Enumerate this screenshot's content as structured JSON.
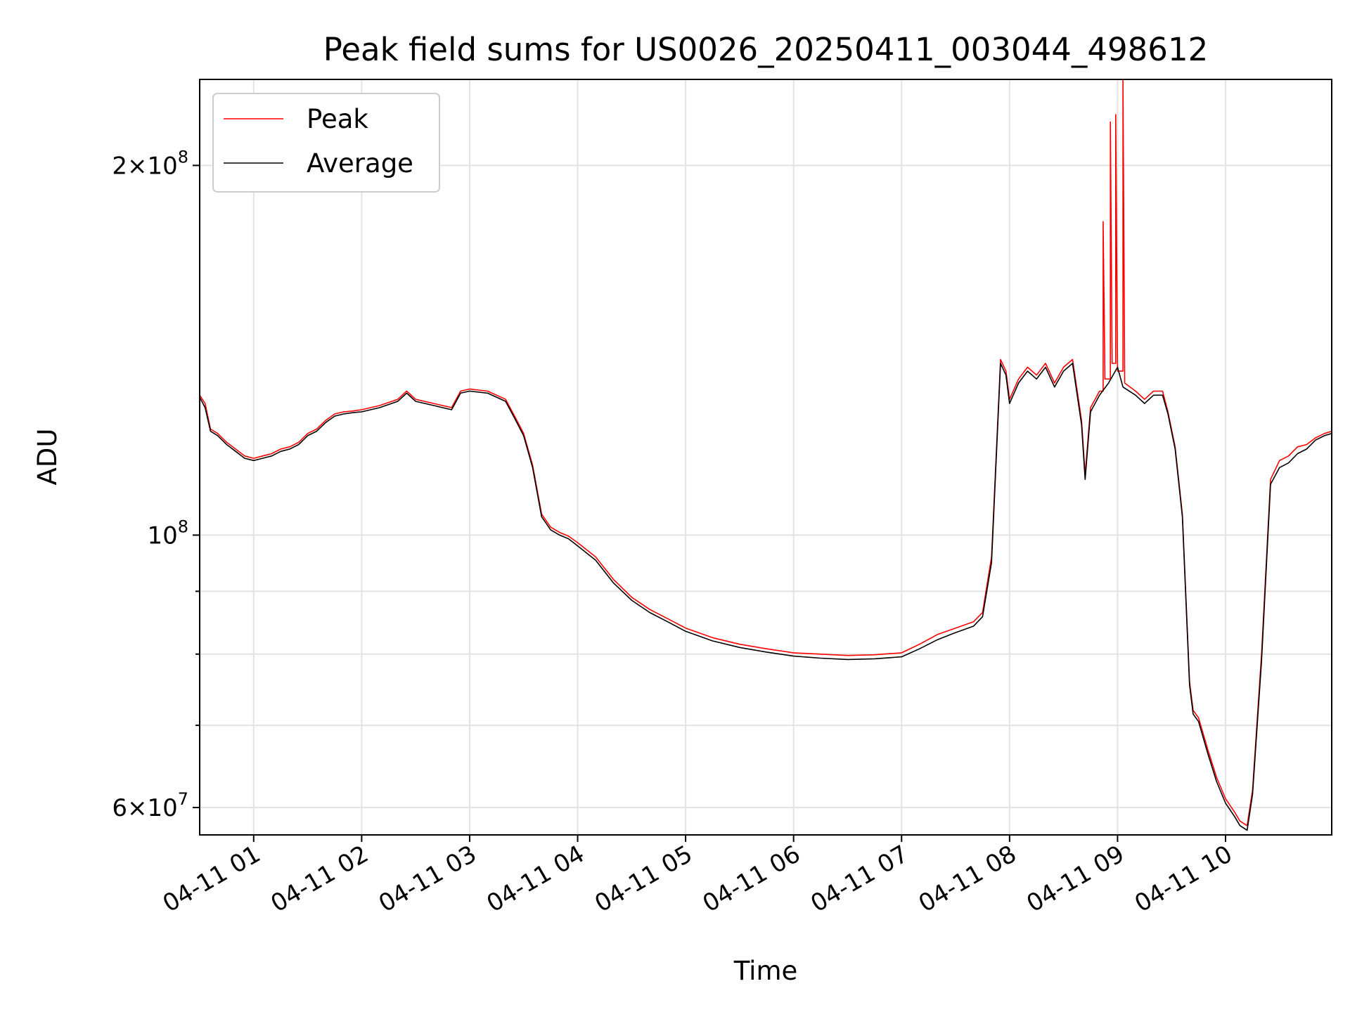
{
  "chart_data": {
    "type": "line",
    "title": "Peak field sums for US0026_20250411_003044_498612",
    "xlabel": "Time",
    "ylabel": "ADU",
    "y_scale": "log",
    "ylim": [
      57000000,
      235000000
    ],
    "xlim": [
      "04-11 00:30",
      "04-11 10:59"
    ],
    "grid": true,
    "legend": {
      "placement": "top-left",
      "entries": [
        "Peak",
        "Average"
      ]
    },
    "x_ticks": [
      {
        "label": "04-11 01",
        "value": "04-11 01:00"
      },
      {
        "label": "04-11 02",
        "value": "04-11 02:00"
      },
      {
        "label": "04-11 03",
        "value": "04-11 03:00"
      },
      {
        "label": "04-11 04",
        "value": "04-11 04:00"
      },
      {
        "label": "04-11 05",
        "value": "04-11 05:00"
      },
      {
        "label": "04-11 06",
        "value": "04-11 06:00"
      },
      {
        "label": "04-11 07",
        "value": "04-11 07:00"
      },
      {
        "label": "04-11 08",
        "value": "04-11 08:00"
      },
      {
        "label": "04-11 09",
        "value": "04-11 09:00"
      },
      {
        "label": "04-11 10",
        "value": "04-11 10:00"
      }
    ],
    "y_ticks": [
      {
        "label": "2×10⁸",
        "mant": "2",
        "exp": "8",
        "value": 200000000
      },
      {
        "label": "10⁸",
        "mant": "",
        "exp": "8",
        "value": 100000000
      },
      {
        "label": "6×10⁷",
        "mant": "6",
        "exp": "7",
        "value": 60000000
      }
    ],
    "y_minor_gridlines": [
      70000000,
      80000000,
      90000000
    ],
    "series": [
      {
        "name": "Peak",
        "color": "#ff0000",
        "x": [
          "04-11 00:30",
          "04-11 00:33",
          "04-11 00:36",
          "04-11 00:40",
          "04-11 00:45",
          "04-11 00:50",
          "04-11 00:55",
          "04-11 01:00",
          "04-11 01:05",
          "04-11 01:10",
          "04-11 01:15",
          "04-11 01:20",
          "04-11 01:25",
          "04-11 01:30",
          "04-11 01:35",
          "04-11 01:40",
          "04-11 01:45",
          "04-11 01:50",
          "04-11 01:55",
          "04-11 02:00",
          "04-11 02:10",
          "04-11 02:20",
          "04-11 02:25",
          "04-11 02:30",
          "04-11 02:40",
          "04-11 02:50",
          "04-11 02:55",
          "04-11 03:00",
          "04-11 03:10",
          "04-11 03:20",
          "04-11 03:25",
          "04-11 03:30",
          "04-11 03:35",
          "04-11 03:40",
          "04-11 03:43",
          "04-11 03:45",
          "04-11 03:50",
          "04-11 03:55",
          "04-11 04:00",
          "04-11 04:10",
          "04-11 04:20",
          "04-11 04:30",
          "04-11 04:40",
          "04-11 04:50",
          "04-11 05:00",
          "04-11 05:15",
          "04-11 05:30",
          "04-11 05:45",
          "04-11 06:00",
          "04-11 06:15",
          "04-11 06:30",
          "04-11 06:45",
          "04-11 07:00",
          "04-11 07:10",
          "04-11 07:20",
          "04-11 07:30",
          "04-11 07:40",
          "04-11 07:45",
          "04-11 07:50",
          "04-11 07:55",
          "04-11 07:58",
          "04-11 08:00",
          "04-11 08:05",
          "04-11 08:10",
          "04-11 08:15",
          "04-11 08:20",
          "04-11 08:25",
          "04-11 08:30",
          "04-11 08:35",
          "04-11 08:40",
          "04-11 08:42",
          "04-11 08:45",
          "04-11 08:50",
          "04-11 08:52",
          "04-11 08:52",
          "04-11 08:53",
          "04-11 08:56",
          "04-11 08:56",
          "04-11 08:57",
          "04-11 08:59",
          "04-11 08:59",
          "04-11 09:00",
          "04-11 09:03",
          "04-11 09:03",
          "04-11 09:04",
          "04-11 09:10",
          "04-11 09:15",
          "04-11 09:20",
          "04-11 09:25",
          "04-11 09:28",
          "04-11 09:32",
          "04-11 09:36",
          "04-11 09:40",
          "04-11 09:42",
          "04-11 09:45",
          "04-11 09:50",
          "04-11 09:55",
          "04-11 10:00",
          "04-11 10:05",
          "04-11 10:08",
          "04-11 10:12",
          "04-11 10:15",
          "04-11 10:20",
          "04-11 10:25",
          "04-11 10:30",
          "04-11 10:35",
          "04-11 10:40",
          "04-11 10:45",
          "04-11 10:50",
          "04-11 10:55",
          "04-11 10:59"
        ],
        "y": [
          130000000,
          128000000,
          122000000,
          121000000,
          119000000,
          117500000,
          116000000,
          115500000,
          116000000,
          116500000,
          117500000,
          118000000,
          119000000,
          121000000,
          122000000,
          124000000,
          125500000,
          126000000,
          126200000,
          126500000,
          127500000,
          129000000,
          131000000,
          129000000,
          128000000,
          127000000,
          131000000,
          131500000,
          131000000,
          129000000,
          125000000,
          121000000,
          114000000,
          104000000,
          102500000,
          101500000,
          100500000,
          99800000,
          98600000,
          96000000,
          92000000,
          89000000,
          87000000,
          85500000,
          84000000,
          82500000,
          81500000,
          80800000,
          80200000,
          80000000,
          79800000,
          79900000,
          80200000,
          81500000,
          83000000,
          84000000,
          85000000,
          86500000,
          96000000,
          139000000,
          136000000,
          129000000,
          134000000,
          137000000,
          135000000,
          138000000,
          133000000,
          137000000,
          139000000,
          124000000,
          112000000,
          127000000,
          131000000,
          131000000,
          180000000,
          134000000,
          134000000,
          217000000,
          138000000,
          138000000,
          220000000,
          136000000,
          136000000,
          235000000,
          133000000,
          131000000,
          129000000,
          131000000,
          131000000,
          126000000,
          118000000,
          104000000,
          76000000,
          72000000,
          71000000,
          67000000,
          63500000,
          61000000,
          59500000,
          58500000,
          58000000,
          62000000,
          80000000,
          111000000,
          115000000,
          116000000,
          118000000,
          118500000,
          120000000,
          121000000,
          121500000
        ]
      },
      {
        "name": "Average",
        "color": "#000000",
        "x": [
          "04-11 00:30",
          "04-11 00:33",
          "04-11 00:36",
          "04-11 00:40",
          "04-11 00:45",
          "04-11 00:50",
          "04-11 00:55",
          "04-11 01:00",
          "04-11 01:05",
          "04-11 01:10",
          "04-11 01:15",
          "04-11 01:20",
          "04-11 01:25",
          "04-11 01:30",
          "04-11 01:35",
          "04-11 01:40",
          "04-11 01:45",
          "04-11 01:50",
          "04-11 01:55",
          "04-11 02:00",
          "04-11 02:10",
          "04-11 02:20",
          "04-11 02:25",
          "04-11 02:30",
          "04-11 02:40",
          "04-11 02:50",
          "04-11 02:55",
          "04-11 03:00",
          "04-11 03:10",
          "04-11 03:20",
          "04-11 03:25",
          "04-11 03:30",
          "04-11 03:35",
          "04-11 03:40",
          "04-11 03:43",
          "04-11 03:45",
          "04-11 03:50",
          "04-11 03:55",
          "04-11 04:00",
          "04-11 04:10",
          "04-11 04:20",
          "04-11 04:30",
          "04-11 04:40",
          "04-11 04:50",
          "04-11 05:00",
          "04-11 05:15",
          "04-11 05:30",
          "04-11 05:45",
          "04-11 06:00",
          "04-11 06:15",
          "04-11 06:30",
          "04-11 06:45",
          "04-11 07:00",
          "04-11 07:10",
          "04-11 07:20",
          "04-11 07:30",
          "04-11 07:40",
          "04-11 07:45",
          "04-11 07:50",
          "04-11 07:55",
          "04-11 07:58",
          "04-11 08:00",
          "04-11 08:05",
          "04-11 08:10",
          "04-11 08:15",
          "04-11 08:20",
          "04-11 08:25",
          "04-11 08:30",
          "04-11 08:35",
          "04-11 08:40",
          "04-11 08:42",
          "04-11 08:45",
          "04-11 08:50",
          "04-11 08:55",
          "04-11 09:00",
          "04-11 09:03",
          "04-11 09:10",
          "04-11 09:15",
          "04-11 09:20",
          "04-11 09:25",
          "04-11 09:28",
          "04-11 09:32",
          "04-11 09:36",
          "04-11 09:40",
          "04-11 09:42",
          "04-11 09:45",
          "04-11 09:50",
          "04-11 09:55",
          "04-11 10:00",
          "04-11 10:05",
          "04-11 10:08",
          "04-11 10:12",
          "04-11 10:15",
          "04-11 10:20",
          "04-11 10:25",
          "04-11 10:30",
          "04-11 10:35",
          "04-11 10:40",
          "04-11 10:45",
          "04-11 10:50",
          "04-11 10:55",
          "04-11 10:59"
        ],
        "y": [
          129500000,
          127000000,
          121500000,
          120500000,
          118500000,
          117000000,
          115500000,
          115000000,
          115500000,
          116000000,
          117000000,
          117500000,
          118500000,
          120500000,
          121500000,
          123500000,
          125000000,
          125500000,
          125800000,
          126000000,
          127000000,
          128500000,
          130500000,
          128500000,
          127500000,
          126500000,
          130500000,
          131000000,
          130500000,
          128500000,
          124500000,
          120500000,
          113500000,
          103500000,
          102000000,
          101000000,
          100000000,
          99300000,
          98000000,
          95400000,
          91400000,
          88500000,
          86500000,
          85000000,
          83500000,
          82000000,
          81000000,
          80300000,
          79700000,
          79400000,
          79200000,
          79300000,
          79600000,
          80800000,
          82200000,
          83300000,
          84300000,
          85800000,
          95000000,
          138000000,
          135000000,
          128000000,
          133000000,
          136000000,
          134000000,
          137000000,
          132000000,
          136000000,
          138000000,
          123000000,
          111000000,
          126000000,
          130000000,
          133000000,
          137000000,
          132000000,
          130000000,
          128000000,
          130000000,
          130000000,
          125500000,
          117500000,
          103500000,
          75500000,
          71500000,
          70500000,
          66500000,
          63000000,
          60500000,
          59000000,
          58000000,
          57500000,
          61500000,
          79000000,
          110000000,
          113500000,
          114500000,
          116500000,
          117500000,
          119500000,
          120500000,
          121000000
        ]
      }
    ]
  }
}
